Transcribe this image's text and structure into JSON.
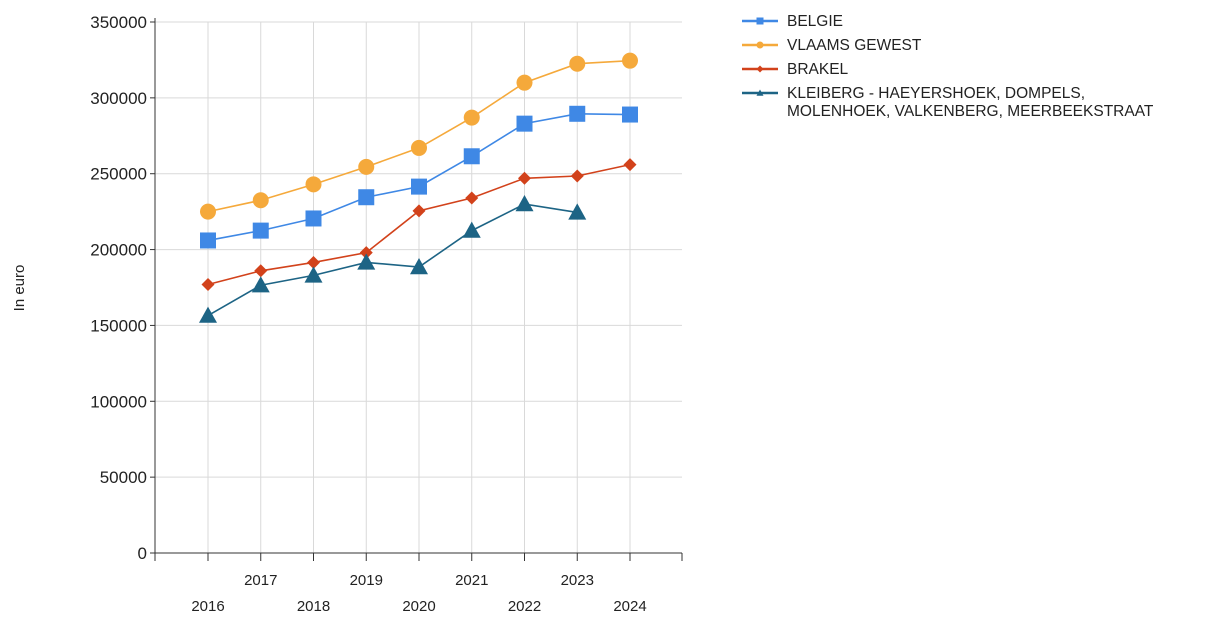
{
  "chart_data": {
    "type": "line",
    "title": "",
    "xlabel": "",
    "ylabel": "In euro",
    "x": [
      2016,
      2017,
      2018,
      2019,
      2020,
      2021,
      2022,
      2023,
      2024
    ],
    "ylim": [
      0,
      350000
    ],
    "yticks": [
      0,
      50000,
      100000,
      150000,
      200000,
      250000,
      300000,
      350000
    ],
    "grid": true,
    "legend_position": "top-right",
    "series": [
      {
        "name": "BELGIE",
        "color": "#3f88e5",
        "marker": "square",
        "values": [
          206000,
          212500,
          220500,
          234500,
          241500,
          261500,
          283000,
          289500,
          289000
        ]
      },
      {
        "name": "VLAAMS GEWEST",
        "color": "#f5a93b",
        "marker": "circle",
        "values": [
          225000,
          232500,
          243000,
          254500,
          267000,
          287000,
          310000,
          322500,
          324500
        ]
      },
      {
        "name": "BRAKEL",
        "color": "#d2421b",
        "marker": "diamond",
        "values": [
          177000,
          186000,
          191500,
          198000,
          225500,
          234000,
          247000,
          248500,
          256000
        ]
      },
      {
        "name": "KLEIBERG - HAEYERSHOEK, DOMPELS, MOLENHOEK, VALKENBERG, MEERBEEKSTRAAT",
        "legend_lines": [
          "KLEIBERG - HAEYERSHOEK, DOMPELS,",
          "MOLENHOEK, VALKENBERG, MEERBEEKSTRAAT"
        ],
        "color": "#1d6485",
        "marker": "triangle",
        "values": [
          156500,
          176500,
          183000,
          191500,
          188500,
          212500,
          230000,
          224500,
          null
        ]
      }
    ]
  }
}
